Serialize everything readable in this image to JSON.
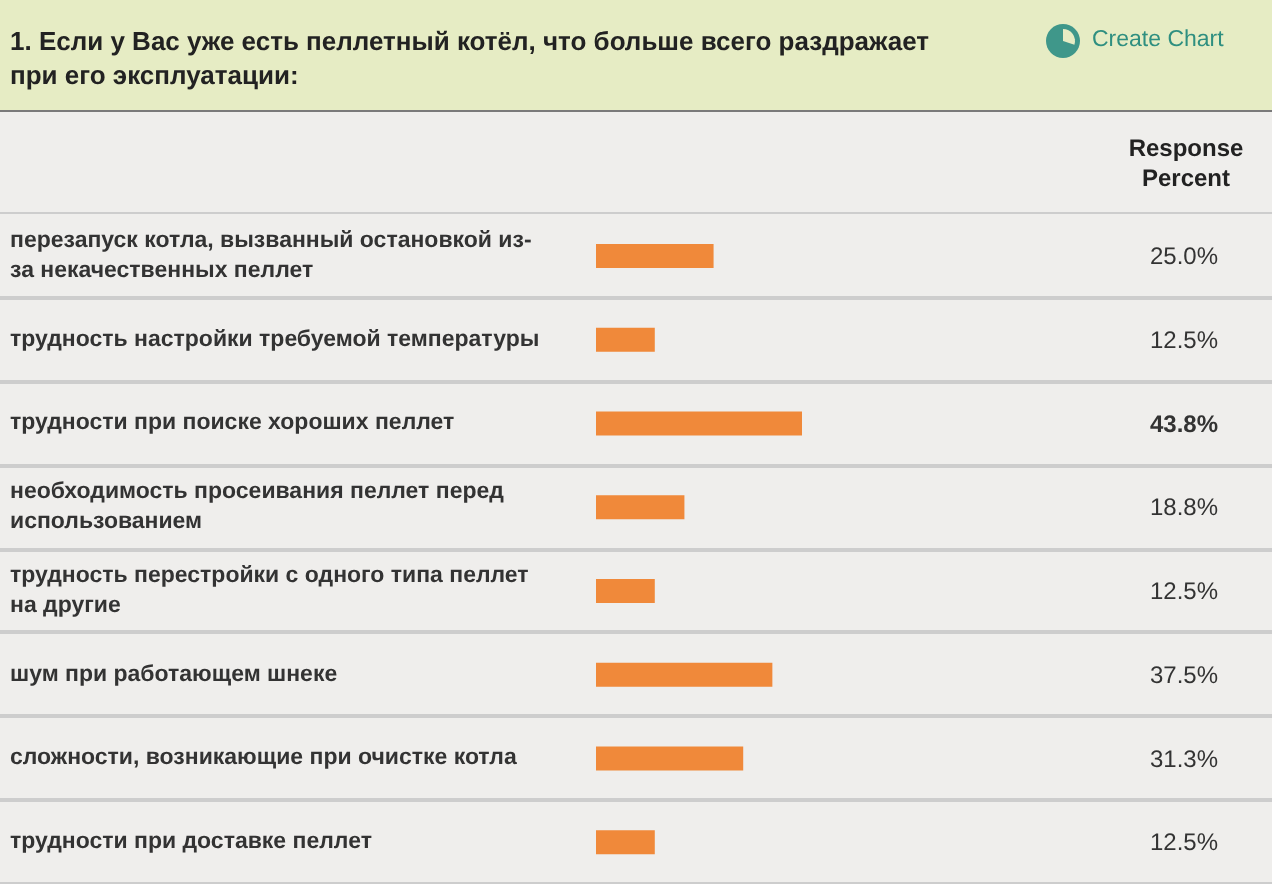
{
  "chart_data": {
    "type": "bar",
    "orientation": "horizontal",
    "title": "1. Если у Вас уже есть пеллетный котёл, что больше всего раздражает при его эксплуатации:",
    "categories": [
      "перезапуск котла, вызванный остановкой из-за некачественных пеллет",
      "трудность настройки требуемой температуры",
      "трудности при поиске хороших пеллет",
      "необходимость просеивания пеллет перед использованием",
      "трудность перестройки с одного типа пеллет на другие",
      "шум при работающем шнеке",
      "сложности, возникающие при очистке котла",
      "трудности при доставке пеллет"
    ],
    "values": [
      25.0,
      12.5,
      43.8,
      18.8,
      12.5,
      37.5,
      31.3,
      12.5
    ],
    "value_labels": [
      "25.0%",
      "12.5%",
      "43.8%",
      "18.8%",
      "12.5%",
      "37.5%",
      "31.3%",
      "12.5%"
    ],
    "color": "#f0893a",
    "tick_labels": "y",
    "annotations": [
      "Create Chart",
      "Response Percent"
    ]
  }
}
